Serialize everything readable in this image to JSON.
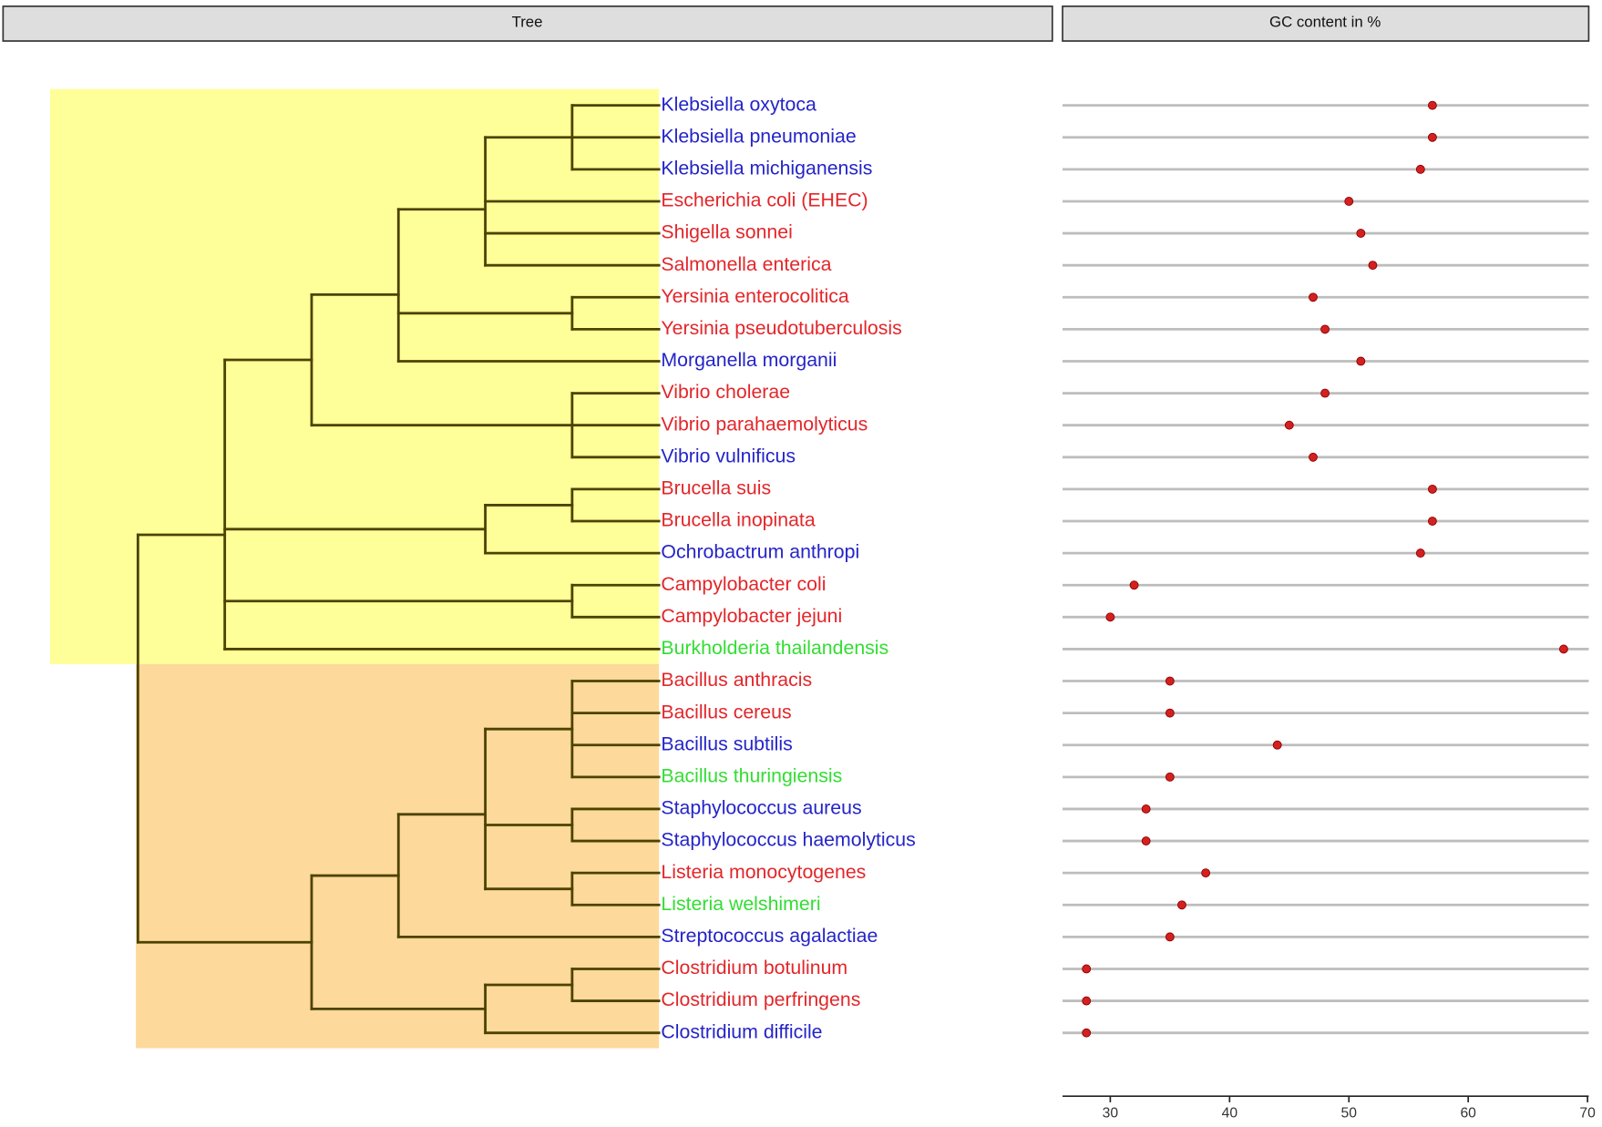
{
  "chart_data": {
    "type": "dot",
    "facets": [
      "Tree",
      "GC content in %"
    ],
    "categories": [
      "Klebsiella oxytoca",
      "Klebsiella pneumoniae",
      "Klebsiella michiganensis",
      "Escherichia coli (EHEC)",
      "Shigella sonnei",
      "Salmonella enterica",
      "Yersinia enterocolitica",
      "Yersinia pseudotuberculosis",
      "Morganella morganii",
      "Vibrio cholerae",
      "Vibrio parahaemolyticus",
      "Vibrio vulnificus",
      "Brucella suis",
      "Brucella inopinata",
      "Ochrobactrum anthropi",
      "Campylobacter coli",
      "Campylobacter jejuni",
      "Burkholderia thailandensis",
      "Bacillus anthracis",
      "Bacillus cereus",
      "Bacillus subtilis",
      "Bacillus thuringiensis",
      "Staphylococcus aureus",
      "Staphylococcus haemolyticus",
      "Listeria monocytogenes",
      "Listeria welshimeri",
      "Streptococcus agalactiae",
      "Clostridium botulinum",
      "Clostridium perfringens",
      "Clostridium difficile"
    ],
    "values": [
      57,
      57,
      56,
      50,
      51,
      52,
      47,
      48,
      51,
      48,
      45,
      47,
      57,
      57,
      56,
      32,
      30,
      68,
      35,
      35,
      44,
      35,
      33,
      33,
      38,
      36,
      35,
      28,
      28,
      28
    ],
    "label_colors": [
      "#2424c8",
      "#2424c8",
      "#2424c8",
      "#e3262a",
      "#e3262a",
      "#e3262a",
      "#e3262a",
      "#e3262a",
      "#2424c8",
      "#e3262a",
      "#e3262a",
      "#2424c8",
      "#e3262a",
      "#e3262a",
      "#2424c8",
      "#e3262a",
      "#e3262a",
      "#33dd33",
      "#e3262a",
      "#e3262a",
      "#2424c8",
      "#33dd33",
      "#2424c8",
      "#2424c8",
      "#e3262a",
      "#33dd33",
      "#2424c8",
      "#e3262a",
      "#e3262a",
      "#2424c8"
    ],
    "color": "#d42020",
    "xlim": [
      26,
      70.1
    ],
    "xticks": [
      30,
      40,
      50,
      60,
      70
    ]
  }
}
